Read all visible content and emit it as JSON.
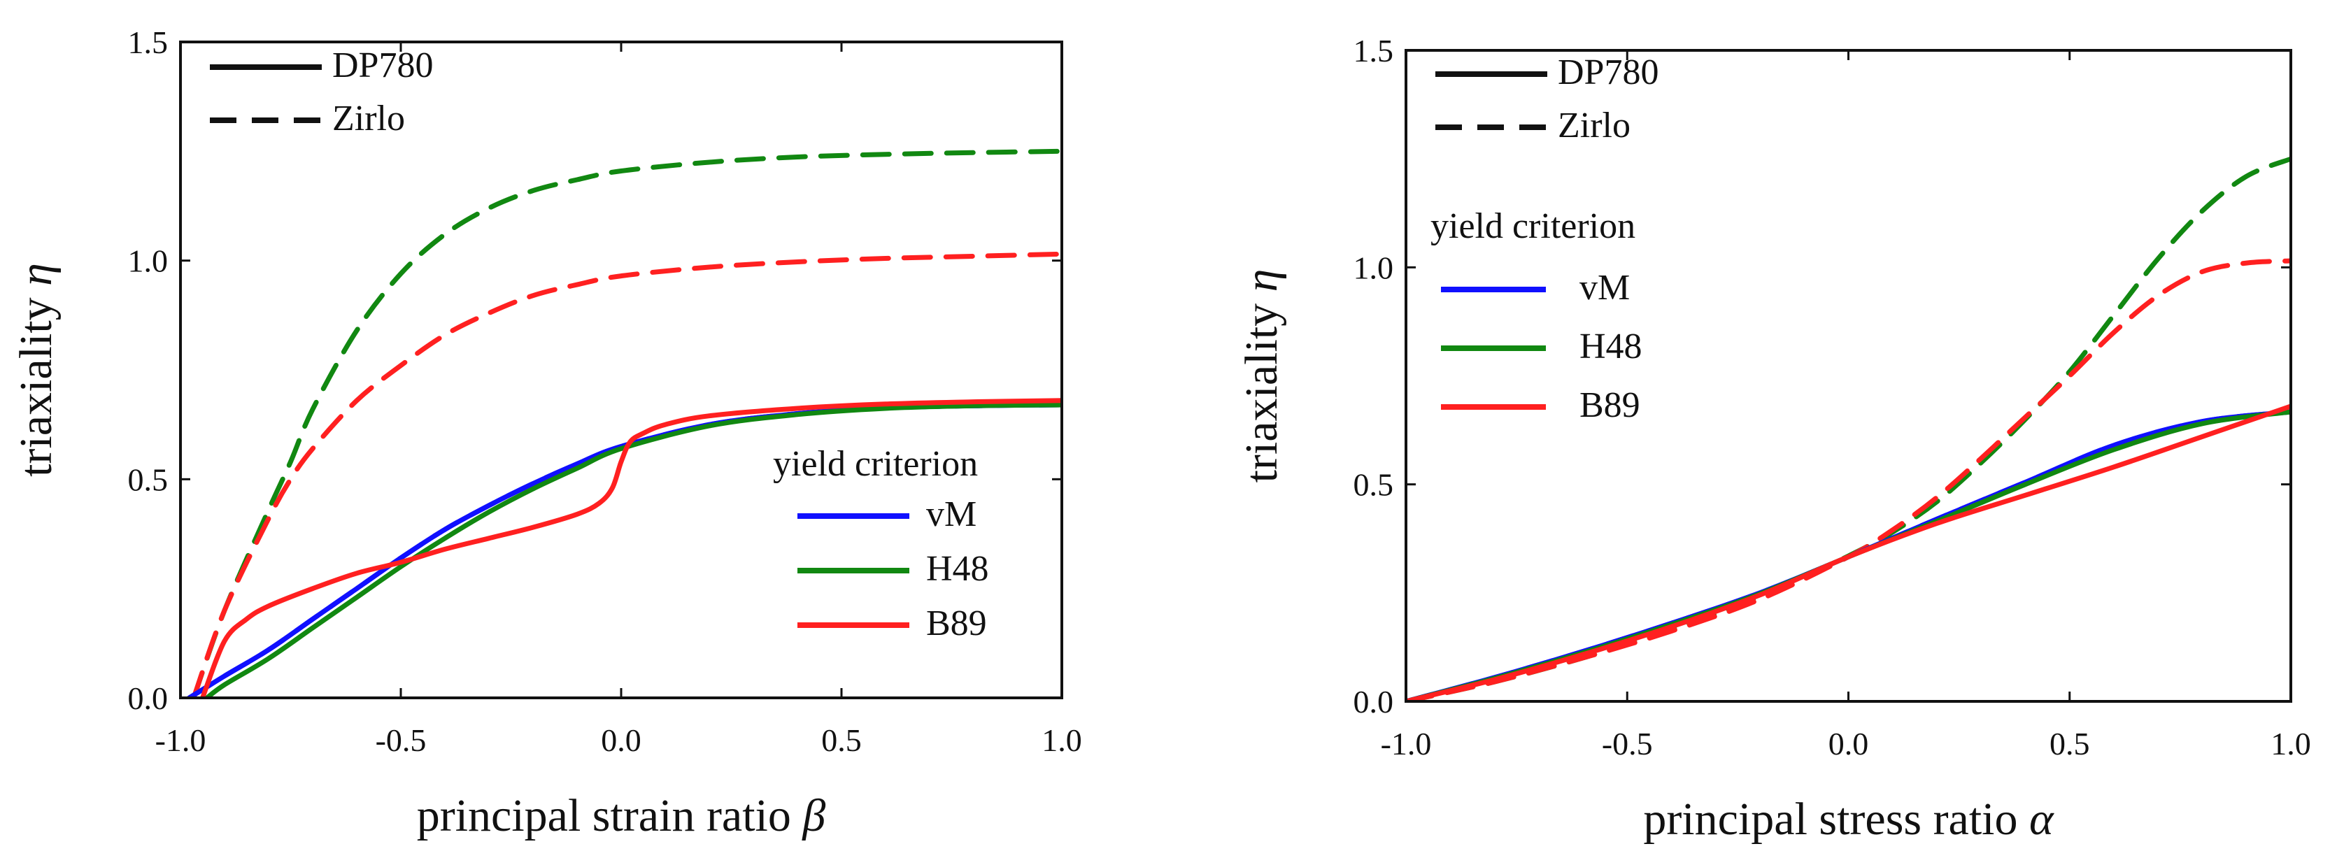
{
  "colors": {
    "vM": "#1010ff",
    "H48": "#118811",
    "B89": "#ff2020",
    "axis": "#111111"
  },
  "chart_data": [
    {
      "type": "line",
      "xlabel_text": "principal strain ratio ",
      "xlabel_symbol": "β",
      "ylabel_text": "triaxiality ",
      "ylabel_symbol": "η",
      "xlim": [
        -1.0,
        1.0
      ],
      "ylim": [
        0.0,
        1.5
      ],
      "xticks": [
        "-1.0",
        "-0.5",
        "0.0",
        "0.5",
        "1.0"
      ],
      "yticks": [
        "0.0",
        "0.5",
        "1.0",
        "1.5"
      ],
      "legend_materials": [
        {
          "label": "DP780",
          "style": "solid"
        },
        {
          "label": "Zirlo",
          "style": "dashed"
        }
      ],
      "legend_materials_position": "top-left",
      "legend_criteria_title": "yield criterion",
      "legend_criteria": [
        {
          "label": "vM",
          "color": "#1010ff"
        },
        {
          "label": "H48",
          "color": "#118811"
        },
        {
          "label": "B89",
          "color": "#ff2020"
        }
      ],
      "legend_criteria_position": "bottom-right",
      "series": [
        {
          "name": "DP780 vM",
          "material": "DP780",
          "criterion": "vM",
          "color": "#1010ff",
          "style": "solid",
          "x": [
            -0.98,
            -0.9,
            -0.8,
            -0.7,
            -0.6,
            -0.5,
            -0.4,
            -0.3,
            -0.2,
            -0.1,
            0.0,
            0.2,
            0.4,
            0.6,
            0.8,
            1.0
          ],
          "y": [
            0.0,
            0.05,
            0.11,
            0.18,
            0.25,
            0.32,
            0.385,
            0.44,
            0.49,
            0.535,
            0.575,
            0.625,
            0.65,
            0.663,
            0.668,
            0.67
          ]
        },
        {
          "name": "DP780 H48",
          "material": "DP780",
          "criterion": "H48",
          "color": "#118811",
          "style": "solid",
          "x": [
            -0.94,
            -0.9,
            -0.8,
            -0.7,
            -0.6,
            -0.5,
            -0.4,
            -0.3,
            -0.2,
            -0.1,
            0.0,
            0.2,
            0.4,
            0.6,
            0.8,
            1.0
          ],
          "y": [
            0.0,
            0.03,
            0.09,
            0.16,
            0.23,
            0.3,
            0.365,
            0.425,
            0.478,
            0.525,
            0.57,
            0.622,
            0.648,
            0.662,
            0.668,
            0.67
          ]
        },
        {
          "name": "DP780 B89",
          "material": "DP780",
          "criterion": "B89",
          "color": "#ff2020",
          "style": "solid",
          "x": [
            -0.95,
            -0.9,
            -0.85,
            -0.8,
            -0.7,
            -0.6,
            -0.5,
            -0.4,
            -0.3,
            -0.2,
            -0.1,
            -0.05,
            -0.02,
            0.0,
            0.02,
            0.05,
            0.1,
            0.2,
            0.4,
            0.6,
            0.8,
            1.0
          ],
          "y": [
            0.0,
            0.13,
            0.18,
            0.21,
            0.25,
            0.285,
            0.31,
            0.34,
            0.365,
            0.39,
            0.42,
            0.445,
            0.48,
            0.54,
            0.585,
            0.605,
            0.625,
            0.645,
            0.662,
            0.672,
            0.677,
            0.68
          ]
        },
        {
          "name": "Zirlo vM",
          "material": "Zirlo",
          "criterion": "vM",
          "color": "#1010ff",
          "style": "dashed",
          "x": [
            -0.98,
            -0.9,
            -0.8,
            -0.7,
            -0.6,
            -0.5,
            -0.4,
            -0.3,
            -0.2,
            -0.1,
            0.0,
            0.2,
            0.4,
            0.6,
            0.8,
            1.0
          ],
          "y": [
            0.0,
            0.05,
            0.11,
            0.18,
            0.25,
            0.32,
            0.385,
            0.44,
            0.49,
            0.535,
            0.575,
            0.625,
            0.65,
            0.663,
            0.668,
            0.67
          ]
        },
        {
          "name": "Zirlo H48",
          "material": "Zirlo",
          "criterion": "H48",
          "color": "#118811",
          "style": "dashed",
          "x": [
            -0.97,
            -0.9,
            -0.8,
            -0.75,
            -0.7,
            -0.6,
            -0.5,
            -0.4,
            -0.3,
            -0.2,
            -0.1,
            0.0,
            0.2,
            0.4,
            0.6,
            0.8,
            1.0
          ],
          "y": [
            0.0,
            0.2,
            0.43,
            0.54,
            0.66,
            0.84,
            0.97,
            1.06,
            1.12,
            1.16,
            1.185,
            1.205,
            1.225,
            1.237,
            1.243,
            1.247,
            1.25
          ]
        },
        {
          "name": "Zirlo B89",
          "material": "Zirlo",
          "criterion": "B89",
          "color": "#ff2020",
          "style": "dashed",
          "x": [
            -0.97,
            -0.9,
            -0.8,
            -0.75,
            -0.7,
            -0.6,
            -0.5,
            -0.4,
            -0.3,
            -0.2,
            -0.1,
            0.0,
            0.2,
            0.4,
            0.6,
            0.8,
            1.0
          ],
          "y": [
            0.0,
            0.2,
            0.41,
            0.5,
            0.57,
            0.68,
            0.76,
            0.83,
            0.88,
            0.92,
            0.945,
            0.965,
            0.985,
            0.997,
            1.005,
            1.01,
            1.015
          ]
        }
      ]
    },
    {
      "type": "line",
      "xlabel_text": "principal stress ratio ",
      "xlabel_symbol": "α",
      "ylabel_text": "triaxiality ",
      "ylabel_symbol": "η",
      "xlim": [
        -1.0,
        1.0
      ],
      "ylim": [
        0.0,
        1.5
      ],
      "xticks": [
        "-1.0",
        "-0.5",
        "0.0",
        "0.5",
        "1.0"
      ],
      "yticks": [
        "0.0",
        "0.5",
        "1.0",
        "1.5"
      ],
      "legend_materials": [
        {
          "label": "DP780",
          "style": "solid"
        },
        {
          "label": "Zirlo",
          "style": "dashed"
        }
      ],
      "legend_materials_position": "top-left",
      "legend_criteria_title": "yield criterion",
      "legend_criteria": [
        {
          "label": "vM",
          "color": "#1010ff"
        },
        {
          "label": "H48",
          "color": "#118811"
        },
        {
          "label": "B89",
          "color": "#ff2020"
        }
      ],
      "legend_criteria_position": "upper-left",
      "series": [
        {
          "name": "DP780 vM",
          "material": "DP780",
          "criterion": "vM",
          "color": "#1010ff",
          "style": "solid",
          "x": [
            -1.0,
            -0.8,
            -0.6,
            -0.4,
            -0.2,
            0.0,
            0.2,
            0.4,
            0.6,
            0.8,
            1.0
          ],
          "y": [
            0.0,
            0.055,
            0.115,
            0.18,
            0.25,
            0.333,
            0.42,
            0.505,
            0.59,
            0.645,
            0.667
          ]
        },
        {
          "name": "DP780 H48",
          "material": "DP780",
          "criterion": "H48",
          "color": "#118811",
          "style": "solid",
          "x": [
            -1.0,
            -0.8,
            -0.6,
            -0.4,
            -0.2,
            0.0,
            0.2,
            0.4,
            0.6,
            0.8,
            1.0
          ],
          "y": [
            0.0,
            0.053,
            0.112,
            0.177,
            0.248,
            0.333,
            0.415,
            0.5,
            0.58,
            0.64,
            0.667
          ]
        },
        {
          "name": "DP780 B89",
          "material": "DP780",
          "criterion": "B89",
          "color": "#ff2020",
          "style": "solid",
          "x": [
            -1.0,
            -0.8,
            -0.6,
            -0.4,
            -0.2,
            0.0,
            0.2,
            0.4,
            0.6,
            0.8,
            1.0
          ],
          "y": [
            0.0,
            0.05,
            0.108,
            0.172,
            0.245,
            0.333,
            0.41,
            0.475,
            0.54,
            0.61,
            0.68
          ]
        },
        {
          "name": "Zirlo vM",
          "material": "Zirlo",
          "criterion": "vM",
          "color": "#1010ff",
          "style": "dashed",
          "x": [
            -1.0,
            -0.8,
            -0.6,
            -0.4,
            -0.2,
            0.0,
            0.2,
            0.4,
            0.6,
            0.8,
            1.0
          ],
          "y": [
            0.0,
            0.055,
            0.115,
            0.18,
            0.25,
            0.333,
            0.42,
            0.505,
            0.59,
            0.645,
            0.667
          ]
        },
        {
          "name": "Zirlo H48",
          "material": "Zirlo",
          "criterion": "H48",
          "color": "#118811",
          "style": "dashed",
          "x": [
            -1.0,
            -0.8,
            -0.6,
            -0.4,
            -0.2,
            0.0,
            0.1,
            0.2,
            0.3,
            0.4,
            0.5,
            0.6,
            0.7,
            0.8,
            0.9,
            1.0
          ],
          "y": [
            0.0,
            0.045,
            0.1,
            0.165,
            0.24,
            0.335,
            0.39,
            0.46,
            0.55,
            0.65,
            0.76,
            0.89,
            1.02,
            1.13,
            1.21,
            1.25
          ]
        },
        {
          "name": "Zirlo B89",
          "material": "Zirlo",
          "criterion": "B89",
          "color": "#ff2020",
          "style": "dashed",
          "x": [
            -1.0,
            -0.8,
            -0.6,
            -0.4,
            -0.2,
            0.0,
            0.1,
            0.2,
            0.3,
            0.4,
            0.5,
            0.6,
            0.7,
            0.8,
            0.9,
            1.0
          ],
          "y": [
            0.0,
            0.045,
            0.1,
            0.162,
            0.235,
            0.333,
            0.395,
            0.47,
            0.56,
            0.655,
            0.75,
            0.85,
            0.935,
            0.99,
            1.01,
            1.015
          ]
        }
      ]
    }
  ]
}
